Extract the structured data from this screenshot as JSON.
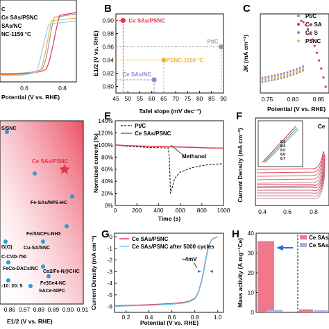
{
  "panels": {
    "A": {
      "legend": [
        "C",
        "Ce SAs/PSNC",
        "SAs/NC",
        "NC-1150 °C"
      ],
      "x_ticks": [
        "0.6",
        "0.8"
      ],
      "xlabel": "Potential (V vs. RHE)"
    },
    "B": {
      "letter": "B",
      "xlabel": "Tafel slope (mV dec⁻¹)",
      "ylabel": "E1/2 (V vs. RHE)",
      "x_ticks": [
        "45",
        "50",
        "55",
        "60",
        "65",
        "70",
        "75",
        "80",
        "85",
        "90"
      ],
      "y_ticks": [
        "0.80",
        "0.82",
        "0.84",
        "0.86",
        "0.88",
        "0.90"
      ],
      "points": [
        {
          "label": "Ce SAs/PSNC",
          "tafel": 48,
          "e12": 0.9,
          "color": "#e8334a"
        },
        {
          "label": "Pt/C",
          "tafel": 89,
          "e12": 0.86,
          "color": "#9a9a9a"
        },
        {
          "label": "PSNC-1150 °C",
          "tafel": 65,
          "e12": 0.84,
          "color": "#f3b13e"
        },
        {
          "label": "Ce SAs/NC",
          "tafel": 61,
          "e12": 0.81,
          "color": "#8a8ad8"
        }
      ]
    },
    "C": {
      "letter": "C",
      "ylabel": "JK (mA cm⁻²)",
      "x_ticks": [
        "0.75",
        "0.80",
        "0.85"
      ],
      "xlabel": "Potential (V vs. RHE)",
      "legend": [
        "Pt/C",
        "Ce SA",
        "Ce S",
        "PSNC"
      ]
    },
    "D": {
      "items": [
        {
          "label": "Ce SAs/PSNC",
          "highlight": true
        },
        {
          "label": "Fe-SAs/NPS-HC"
        },
        {
          "label": "Fe/SNCFs-NH3"
        },
        {
          "label": "Cu-SA/SNC"
        },
        {
          "label": "FeCo-DACs/NC"
        },
        {
          "label": "Co2/Fe-N@CHC"
        },
        {
          "label": "Fe3Se4-NC"
        },
        {
          "label": "SACe-N/PC"
        },
        {
          "label": "S/SNC"
        },
        {
          "label": "G(O)"
        },
        {
          "label": "C-CVD-750"
        },
        {
          "label": "-10: 20: 5"
        }
      ],
      "x_ticks": [
        "0.86",
        "0.87",
        "0.88",
        "0.89",
        "0.90",
        "0.91"
      ],
      "xlabel": "E1/2 (V vs. RHE)"
    },
    "E": {
      "letter": "E",
      "ylabel": "Normized current (%)",
      "xlabel": "Time (s)",
      "x_ticks": [
        "0",
        "200",
        "400",
        "600",
        "800",
        "1000"
      ],
      "y_ticks": [
        "0%",
        "20%",
        "40%",
        "60%",
        "80%",
        "100%",
        "120%",
        "140%"
      ],
      "legend": [
        "Pt/C",
        "Ce SAs/PSNC"
      ],
      "annotation": "Methanol"
    },
    "F": {
      "letter": "F",
      "ylabel": "Current Density (mA cm⁻²)",
      "x_ticks": [
        "0.4",
        "0.6",
        "0.8"
      ],
      "title_fragment": "Ce",
      "inset_scan_rates": [
        "8.3",
        "8.4",
        "8.5",
        "8.6",
        "8.7"
      ]
    },
    "G": {
      "letter": "G",
      "ylabel": "Current Density (mA cm⁻²)",
      "xlabel": "Potential (V vs. RHE)",
      "x_ticks": [
        "0.2",
        "0.4",
        "0.6",
        "0.8",
        "1.0"
      ],
      "y_ticks": [
        "0",
        "-1",
        "-2",
        "-3",
        "-4",
        "-5",
        "-6"
      ],
      "legend": [
        "Ce SAs/PSNC",
        "Ce SAs/PSNC after 5000 cycles"
      ],
      "annotation": "~4mV"
    },
    "H": {
      "letter": "H",
      "ylabel": "Mass activity (A mg⁻¹Ce)",
      "y_ticks": [
        "0",
        "10",
        "20",
        "30",
        "40"
      ],
      "legend": [
        "Ce SAs/PSNC",
        "Ce SAs/NC"
      ]
    }
  },
  "chart_data": [
    {
      "type": "scatter",
      "panel": "B",
      "xlabel": "Tafel slope (mV dec⁻¹)",
      "ylabel": "E1/2 (V vs. RHE)",
      "xlim": [
        45,
        90
      ],
      "ylim": [
        0.79,
        0.91
      ],
      "series": [
        {
          "name": "Ce SAs/PSNC",
          "x": [
            48
          ],
          "y": [
            0.9
          ]
        },
        {
          "name": "Pt/C",
          "x": [
            89
          ],
          "y": [
            0.86
          ]
        },
        {
          "name": "PSNC-1150 °C",
          "x": [
            65
          ],
          "y": [
            0.84
          ]
        },
        {
          "name": "Ce SAs/NC",
          "x": [
            61
          ],
          "y": [
            0.81
          ]
        }
      ]
    },
    {
      "type": "line",
      "panel": "E",
      "xlabel": "Time (s)",
      "ylabel": "Normized current (%)",
      "xlim": [
        0,
        1000
      ],
      "ylim": [
        0,
        140
      ],
      "series": [
        {
          "name": "Pt/C",
          "x": [
            0,
            50,
            100,
            200,
            300,
            400,
            490,
            500,
            510,
            550,
            600,
            700,
            800,
            900,
            1000
          ],
          "y": [
            100,
            99,
            98,
            97,
            96,
            95.5,
            95,
            80,
            20,
            45,
            55,
            62,
            66,
            68,
            69
          ]
        },
        {
          "name": "Ce SAs/PSNC",
          "x": [
            0,
            100,
            200,
            300,
            400,
            500,
            600,
            700,
            800,
            900,
            1000
          ],
          "y": [
            100,
            99,
            98.5,
            98,
            97.5,
            97,
            96.5,
            96,
            95.5,
            95,
            95
          ]
        }
      ]
    },
    {
      "type": "line",
      "panel": "G",
      "xlabel": "Potential (V vs. RHE)",
      "ylabel": "Current Density (mA cm⁻²)",
      "xlim": [
        0.1,
        1.05
      ],
      "ylim": [
        -6.5,
        0.3
      ],
      "series": [
        {
          "name": "Ce SAs/PSNC",
          "x": [
            0.1,
            0.2,
            0.3,
            0.4,
            0.5,
            0.6,
            0.7,
            0.75,
            0.8,
            0.83,
            0.86,
            0.88,
            0.9,
            0.92,
            0.95,
            1.0
          ],
          "y": [
            -5.95,
            -5.9,
            -5.88,
            -5.85,
            -5.8,
            -5.75,
            -5.65,
            -5.55,
            -5.3,
            -4.8,
            -3.8,
            -2.8,
            -1.7,
            -0.8,
            -0.2,
            0
          ]
        },
        {
          "name": "Ce SAs/PSNC after 5000 cycles",
          "x": [
            0.1,
            0.2,
            0.3,
            0.4,
            0.5,
            0.6,
            0.7,
            0.75,
            0.8,
            0.83,
            0.86,
            0.88,
            0.9,
            0.92,
            0.95,
            1.0
          ],
          "y": [
            -6.0,
            -5.95,
            -5.92,
            -5.9,
            -5.85,
            -5.8,
            -5.7,
            -5.6,
            -5.35,
            -4.85,
            -3.9,
            -2.9,
            -1.8,
            -0.85,
            -0.22,
            0
          ]
        }
      ]
    },
    {
      "type": "bar",
      "panel": "H",
      "ylabel": "Mass activity (A mg⁻¹Ce)",
      "categories": [
        "Ce SAs/PSNC",
        "Ce SAs/NC",
        "Ce SAs/PSNC",
        "Ce SAs/NC"
      ],
      "values": [
        36,
        1.2,
        1.5,
        1.0
      ],
      "ylim": [
        0,
        40
      ]
    }
  ]
}
